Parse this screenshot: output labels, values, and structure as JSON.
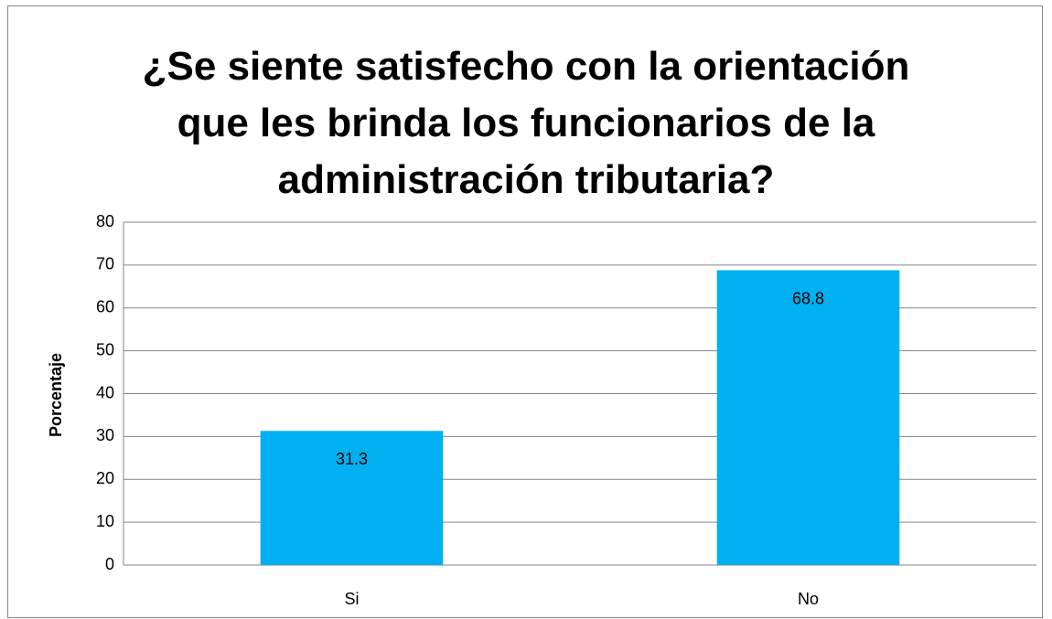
{
  "chart_data": {
    "type": "bar",
    "title": "¿Se siente satisfecho con la orientación que les brinda los funcionarios de la administración tributaria?",
    "y_label": "Porcentaje",
    "categories": [
      "Si",
      "No"
    ],
    "values": [
      31.3,
      68.8
    ],
    "color": "#00b0f0",
    "ylim": [
      0,
      80
    ],
    "yticks": [
      0,
      10,
      20,
      30,
      40,
      50,
      60,
      70,
      80
    ],
    "grid": true
  }
}
